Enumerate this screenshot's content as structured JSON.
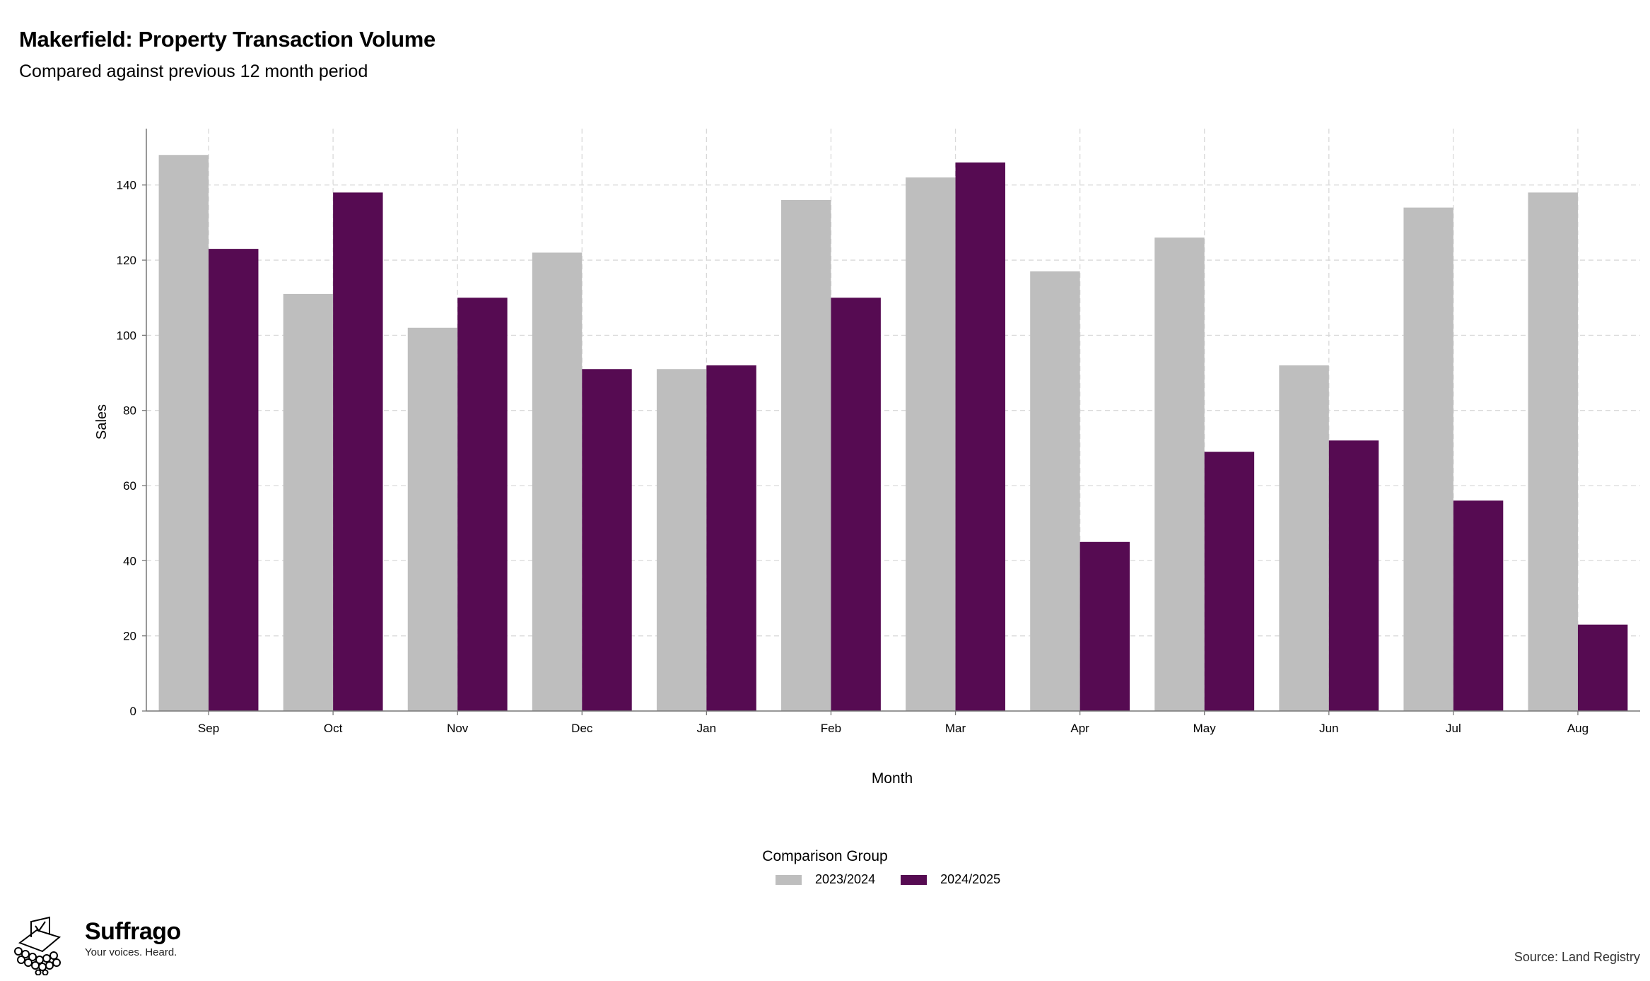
{
  "title": "Makerfield: Property Transaction Volume",
  "subtitle": "Compared against previous 12 month period",
  "legend_title": "Comparison Group",
  "source": "Source: Land Registry",
  "brand": {
    "name": "Suffrago",
    "tagline": "Your voices. Heard."
  },
  "colors": {
    "series_2023": "#bebebe",
    "series_2024": "#560b52",
    "grid": "#d9d9d9",
    "axis": "#777777"
  },
  "chart_data": {
    "type": "bar",
    "xlabel": "Month",
    "ylabel": "Sales",
    "ylim": [
      0,
      155
    ],
    "yticks": [
      0,
      20,
      40,
      60,
      80,
      100,
      120,
      140
    ],
    "grid": true,
    "legend_position": "bottom",
    "categories": [
      "Sep",
      "Oct",
      "Nov",
      "Dec",
      "Jan",
      "Feb",
      "Mar",
      "Apr",
      "May",
      "Jun",
      "Jul",
      "Aug"
    ],
    "series": [
      {
        "name": "2023/2024",
        "color": "#bebebe",
        "values": [
          148,
          111,
          102,
          122,
          91,
          136,
          142,
          117,
          126,
          92,
          134,
          138
        ]
      },
      {
        "name": "2024/2025",
        "color": "#560b52",
        "values": [
          123,
          138,
          110,
          91,
          92,
          110,
          146,
          45,
          69,
          72,
          56,
          23
        ]
      }
    ]
  }
}
